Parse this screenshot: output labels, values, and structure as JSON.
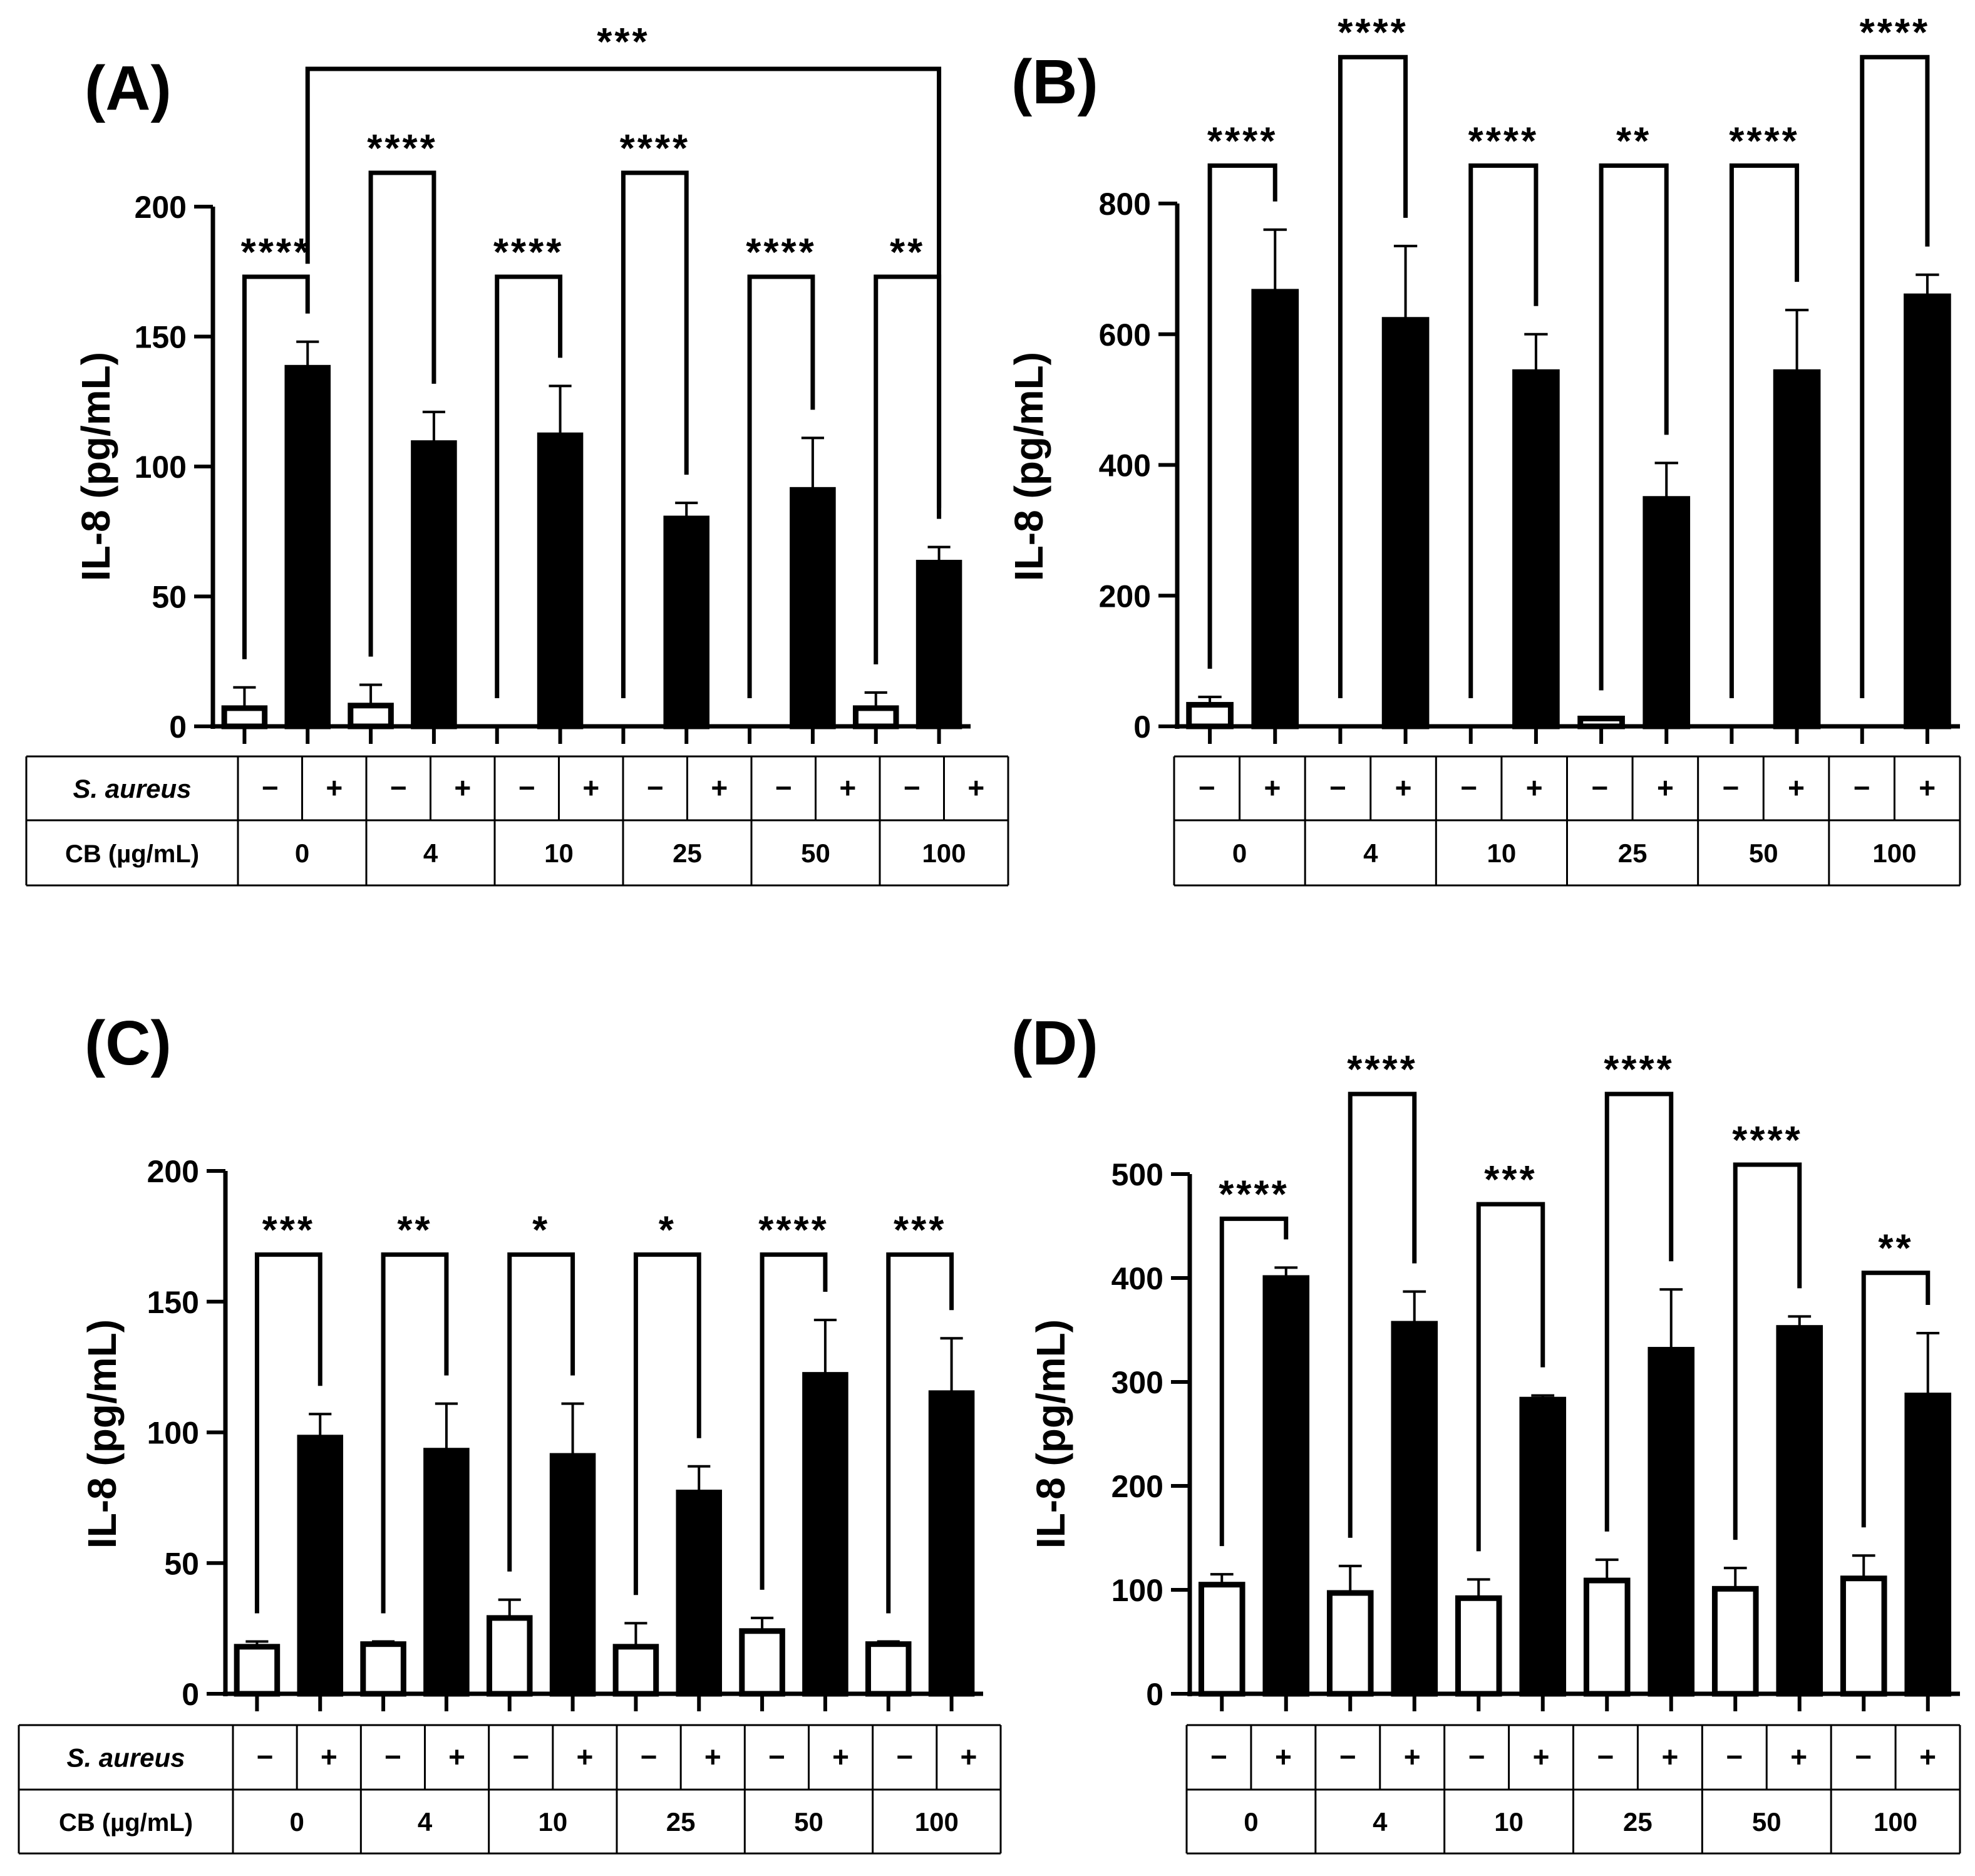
{
  "table": {
    "s_aureus_label": "S. aureus",
    "cb_label": "CB (µg/mL)",
    "minus": "−",
    "plus": "+"
  },
  "chart_data": [
    {
      "panel": "(A)",
      "type": "bar",
      "ylabel": "IL-8 (pg/mL)",
      "ylim": [
        0,
        200
      ],
      "yticks": [
        0,
        50,
        100,
        150,
        200
      ],
      "categories": [
        "0",
        "4",
        "10",
        "25",
        "50",
        "100"
      ],
      "series": [
        {
          "label": "−",
          "fill": "#ffffff",
          "values": [
            7,
            8,
            0,
            0,
            0,
            7
          ],
          "errors": [
            8,
            8,
            0,
            0,
            0,
            6
          ]
        },
        {
          "label": "+",
          "fill": "#000000",
          "values": [
            138,
            109,
            112,
            80,
            91,
            63
          ],
          "errors": [
            10,
            12,
            19,
            6,
            20,
            6
          ]
        }
      ],
      "pair_sig": [
        "****",
        "****",
        "****",
        "****",
        "****",
        "**"
      ],
      "pair_top": [
        173,
        213,
        173,
        213,
        173,
        173
      ],
      "extra_sig": {
        "label": "***",
        "from": 1,
        "to": 11,
        "top": 253
      },
      "show_cb_label": true
    },
    {
      "panel": "(B)",
      "type": "bar",
      "ylabel": "IL-8 (pg/mL)",
      "ylim": [
        0,
        800
      ],
      "yticks": [
        0,
        200,
        400,
        600,
        800
      ],
      "categories": [
        "0",
        "4",
        "10",
        "25",
        "50",
        "100"
      ],
      "series": [
        {
          "label": "−",
          "fill": "#ffffff",
          "values": [
            33,
            0,
            0,
            12,
            0,
            0
          ],
          "errors": [
            12,
            0,
            0,
            0,
            0,
            0
          ]
        },
        {
          "label": "+",
          "fill": "#000000",
          "values": [
            665,
            622,
            542,
            348,
            542,
            658
          ],
          "errors": [
            95,
            113,
            58,
            55,
            95,
            33
          ]
        }
      ],
      "pair_sig": [
        "****",
        "****",
        "****",
        "**",
        "****",
        "****"
      ],
      "pair_top": [
        858,
        1024,
        858,
        858,
        858,
        1024
      ],
      "show_cb_label": false
    },
    {
      "panel": "(C)",
      "type": "bar",
      "ylabel": "IL-8 (pg/mL)",
      "ylim": [
        0,
        200
      ],
      "yticks": [
        0,
        50,
        100,
        150,
        200
      ],
      "categories": [
        "0",
        "4",
        "10",
        "25",
        "50",
        "100"
      ],
      "series": [
        {
          "label": "−",
          "fill": "#ffffff",
          "values": [
            18,
            19,
            29,
            18,
            24,
            19
          ],
          "errors": [
            2,
            1,
            7,
            9,
            5,
            1
          ]
        },
        {
          "label": "+",
          "fill": "#000000",
          "values": [
            98,
            93,
            91,
            77,
            122,
            115
          ],
          "errors": [
            9,
            18,
            20,
            10,
            21,
            21
          ]
        }
      ],
      "pair_sig": [
        "***",
        "**",
        "*",
        "*",
        "****",
        "***"
      ],
      "pair_top": [
        168,
        168,
        168,
        168,
        168,
        168
      ],
      "show_cb_label": true
    },
    {
      "panel": "(D)",
      "type": "bar",
      "ylabel": "IL-8 (pg/mL)",
      "ylim": [
        0,
        500
      ],
      "yticks": [
        0,
        100,
        200,
        300,
        400,
        500
      ],
      "categories": [
        "0",
        "4",
        "10",
        "25",
        "50",
        "100"
      ],
      "series": [
        {
          "label": "−",
          "fill": "#ffffff",
          "values": [
            105,
            97,
            92,
            109,
            101,
            111
          ],
          "errors": [
            10,
            26,
            18,
            20,
            20,
            22
          ]
        },
        {
          "label": "+",
          "fill": "#000000",
          "values": [
            400,
            356,
            283,
            331,
            352,
            287
          ],
          "errors": [
            10,
            31,
            4,
            58,
            11,
            60
          ]
        }
      ],
      "pair_sig": [
        "****",
        "****",
        "***",
        "****",
        "****",
        "**"
      ],
      "pair_top": [
        457,
        577,
        471,
        577,
        509,
        405
      ],
      "show_cb_label": false
    }
  ]
}
